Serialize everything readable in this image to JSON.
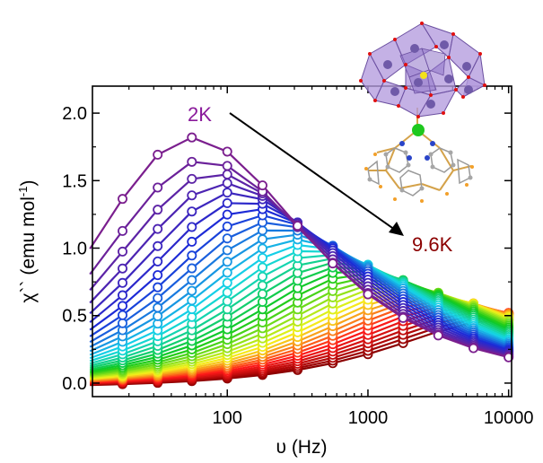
{
  "chart_data": {
    "type": "line",
    "title": "",
    "xlabel": "υ (Hz)",
    "ylabel_main": "χ``",
    "ylabel_unit": "(emu mol",
    "ylabel_sup": "-1",
    "ylabel_close": ")",
    "x_scale": "log",
    "xlim": [
      11,
      10500
    ],
    "ylim": [
      -0.1,
      2.2
    ],
    "x_ticks": [
      100,
      1000,
      10000
    ],
    "x_tick_labels": [
      "100",
      "1000",
      "10000"
    ],
    "y_ticks": [
      0.0,
      0.5,
      1.0,
      1.5,
      2.0
    ],
    "y_tick_labels": [
      "0.0",
      "0.5",
      "1.0",
      "1.5",
      "2.0"
    ],
    "grid": false,
    "frequencies": [
      10,
      18,
      32,
      56,
      100,
      178,
      316,
      562,
      1000,
      1778,
      3162,
      5623,
      10000
    ],
    "annotation_start": "2K",
    "annotation_end": "9.6K",
    "annotation_start_color": "#8a1a9b",
    "annotation_end_color": "#8b0000",
    "series_count": 38,
    "temperature_range_K": [
      2,
      9.6
    ],
    "color_stops": [
      "#7b1f8e",
      "#1a2ad8",
      "#15d8e8",
      "#10c81a",
      "#f5f51a",
      "#ff1a1a",
      "#8b0000"
    ],
    "marker": "open-circle",
    "inset": "molecular-structure"
  }
}
